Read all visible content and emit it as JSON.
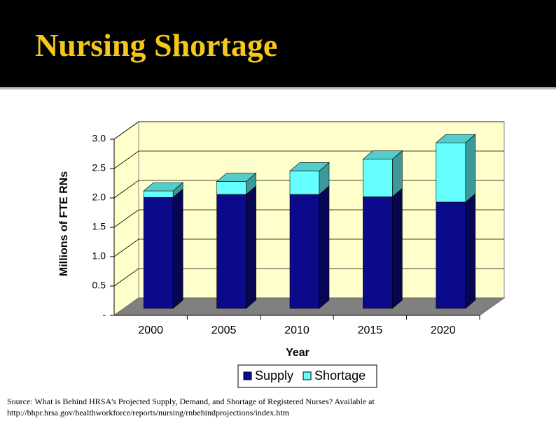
{
  "chart_data": {
    "type": "stacked_bar_3d",
    "title": "Nursing Shortage",
    "x_label": "Year",
    "y_label": "Millions of FTE RNs",
    "categories": [
      "2000",
      "2005",
      "2010",
      "2015",
      "2020"
    ],
    "series": [
      {
        "name": "Supply",
        "color": "#0a0a8a",
        "values": [
          1.89,
          1.94,
          1.94,
          1.9,
          1.81
        ]
      },
      {
        "name": "Shortage",
        "color": "#66ffff",
        "values": [
          0.11,
          0.22,
          0.4,
          0.64,
          1.01
        ]
      }
    ],
    "ylim": [
      0,
      3.0
    ],
    "yticks": [
      {
        "value": 0,
        "label": "-"
      },
      0.5,
      {
        "value": 1.0,
        "label": "1.0"
      },
      1.5,
      {
        "value": 2.0,
        "label": "2.0"
      },
      2.5,
      {
        "value": 3.0,
        "label": "3.0"
      }
    ],
    "grid": true
  },
  "source": [
    "Source: What is Behind HRSA's Projected Supply, Demand, and Shortage of Registered Nurses? Available at",
    "http://bhpr.hrsa.gov/healthworkforce/reports/nursing/rnbehindprojections/index.htm"
  ]
}
